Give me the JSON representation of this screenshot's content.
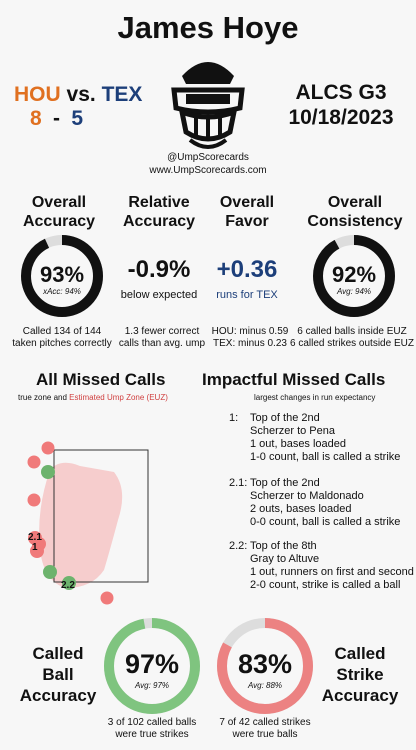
{
  "header": {
    "umpire_name": "James Hoye",
    "home_team": "HOU",
    "vs": "vs.",
    "away_team": "TEX",
    "home_score": "8",
    "dash": "-",
    "away_score": "5",
    "series": "ALCS G3",
    "date": "10/18/2023",
    "handle": "@UmpScorecards",
    "website": "www.UmpScorecards.com"
  },
  "metrics": {
    "accuracy": {
      "title_line1": "Overall",
      "title_line2": "Accuracy",
      "value": "93%",
      "sub": "xAcc: 94%",
      "fraction": 0.93,
      "desc_line1": "Called 134 of 144",
      "desc_line2": "taken pitches correctly"
    },
    "relative": {
      "title_line1": "Relative",
      "title_line2": "Accuracy",
      "value": "-0.9%",
      "sub": "below expected",
      "desc_line1": "1.3 fewer correct",
      "desc_line2": "calls than avg. ump"
    },
    "favor": {
      "title_line1": "Overall",
      "title_line2": "Favor",
      "value": "+0.36",
      "sub": "runs for TEX",
      "desc_line1": "HOU: minus 0.59",
      "desc_line2": "TEX: minus 0.23"
    },
    "consistency": {
      "title_line1": "Overall",
      "title_line2": "Consistency",
      "value": "92%",
      "sub": "Avg: 94%",
      "fraction": 0.92,
      "desc_line1": "6 called balls inside EUZ",
      "desc_line2": "6 called strikes outside EUZ"
    }
  },
  "missed_calls": {
    "title": "All Missed Calls",
    "legend_true": "true zone and",
    "legend_euz": "Estimated Ump Zone (EUZ)",
    "labels": [
      "2.1",
      "1",
      "2.2"
    ]
  },
  "impactful": {
    "title": "Impactful Missed Calls",
    "subtitle": "largest changes in run expectancy",
    "items": [
      {
        "num": "1:",
        "lines": [
          "Top of the 2nd",
          "Scherzer to Pena",
          "1 out, bases loaded",
          "1-0 count, ball is called a strike"
        ]
      },
      {
        "num": "2.1:",
        "lines": [
          "Top of the 2nd",
          "Scherzer to Maldonado",
          "2 outs, bases loaded",
          "0-0 count, ball is called a strike"
        ]
      },
      {
        "num": "2.2:",
        "lines": [
          "Top of the 8th",
          "Gray to Altuve",
          "1 out, runners on first and second",
          "2-0 count, strike is called a ball"
        ]
      }
    ]
  },
  "bottom": {
    "ball": {
      "label_line1": "Called",
      "label_line2": "Ball",
      "label_line3": "Accuracy",
      "value": "97%",
      "sub": "Avg: 97%",
      "fraction": 0.97,
      "desc_line1": "3 of 102 called balls",
      "desc_line2": "were true strikes"
    },
    "strike": {
      "label_line1": "Called",
      "label_line2": "Strike",
      "label_line3": "Accuracy",
      "value": "83%",
      "sub": "Avg: 88%",
      "fraction": 0.83,
      "desc_line1": "7 of 42 called strikes",
      "desc_line2": "were true balls"
    }
  },
  "colors": {
    "home": "#e07020",
    "away": "#1d3f7a",
    "ring_dark": "#111111",
    "ring_track": "#dddddd",
    "ball_ring": "#7fc47f",
    "strike_ring": "#ec8282",
    "euz": "#f6c6c6",
    "euz_label": "#d04040",
    "dot_red": "#f07a7a",
    "dot_green": "#6db36d"
  }
}
